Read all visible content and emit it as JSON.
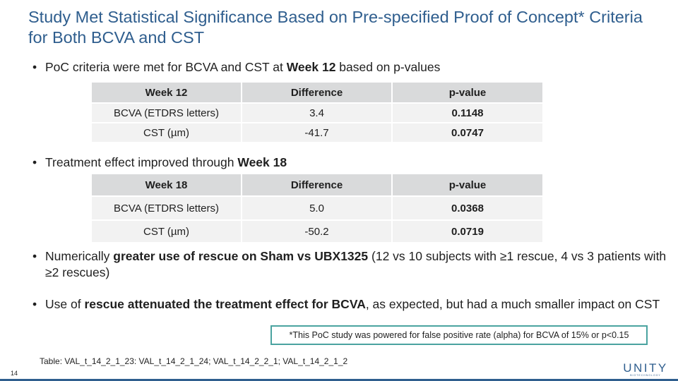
{
  "title": "Study Met Statistical Significance Based on Pre-specified Proof of Concept* Criteria for Both BCVA and CST",
  "bullet1": {
    "pre": "PoC criteria were met for BCVA and CST at ",
    "bold": "Week 12",
    "post": " based on p-values"
  },
  "table1": {
    "headers": [
      "Week 12",
      "Difference",
      "p-value"
    ],
    "rows": [
      [
        "BCVA (ETDRS letters)",
        "3.4",
        "0.1148"
      ],
      [
        "CST (µm)",
        "-41.7",
        "0.0747"
      ]
    ]
  },
  "bullet2": {
    "pre": "Treatment effect improved through ",
    "bold": "Week 18"
  },
  "table2": {
    "headers": [
      "Week 18",
      "Difference",
      "p-value"
    ],
    "rows": [
      [
        "BCVA (ETDRS letters)",
        "5.0",
        "0.0368"
      ],
      [
        "CST (µm)",
        "-50.2",
        "0.0719"
      ]
    ]
  },
  "bullet3": {
    "pre": "Numerically ",
    "bold": "greater use of rescue on Sham vs UBX1325",
    "post": " (12 vs 10 subjects with ≥1 rescue, 4 vs 3 patients with ≥2 rescues)"
  },
  "bullet4": {
    "pre": "Use of ",
    "bold": "rescue attenuated the treatment effect for BCVA",
    "post": ", as expected, but had a much smaller impact on CST"
  },
  "footnote": "*This PoC study was powered for false positive rate (alpha) for BCVA of 15% or p<0.15",
  "source": "Table: VAL_t_14_2_1_23: VAL_t_14_2_1_24; VAL_t_14_2_2_1; VAL_t_14_2_1_2",
  "page_number": "14",
  "logo": {
    "word": "UNITY",
    "sub": "BIOTECHNOLOGY"
  },
  "bullet_char": "•",
  "colors": {
    "title": "#2f5e8e",
    "header_bg": "#d9dadb",
    "cell_bg": "#f2f2f2",
    "footnote_border": "#4aa3a0"
  }
}
